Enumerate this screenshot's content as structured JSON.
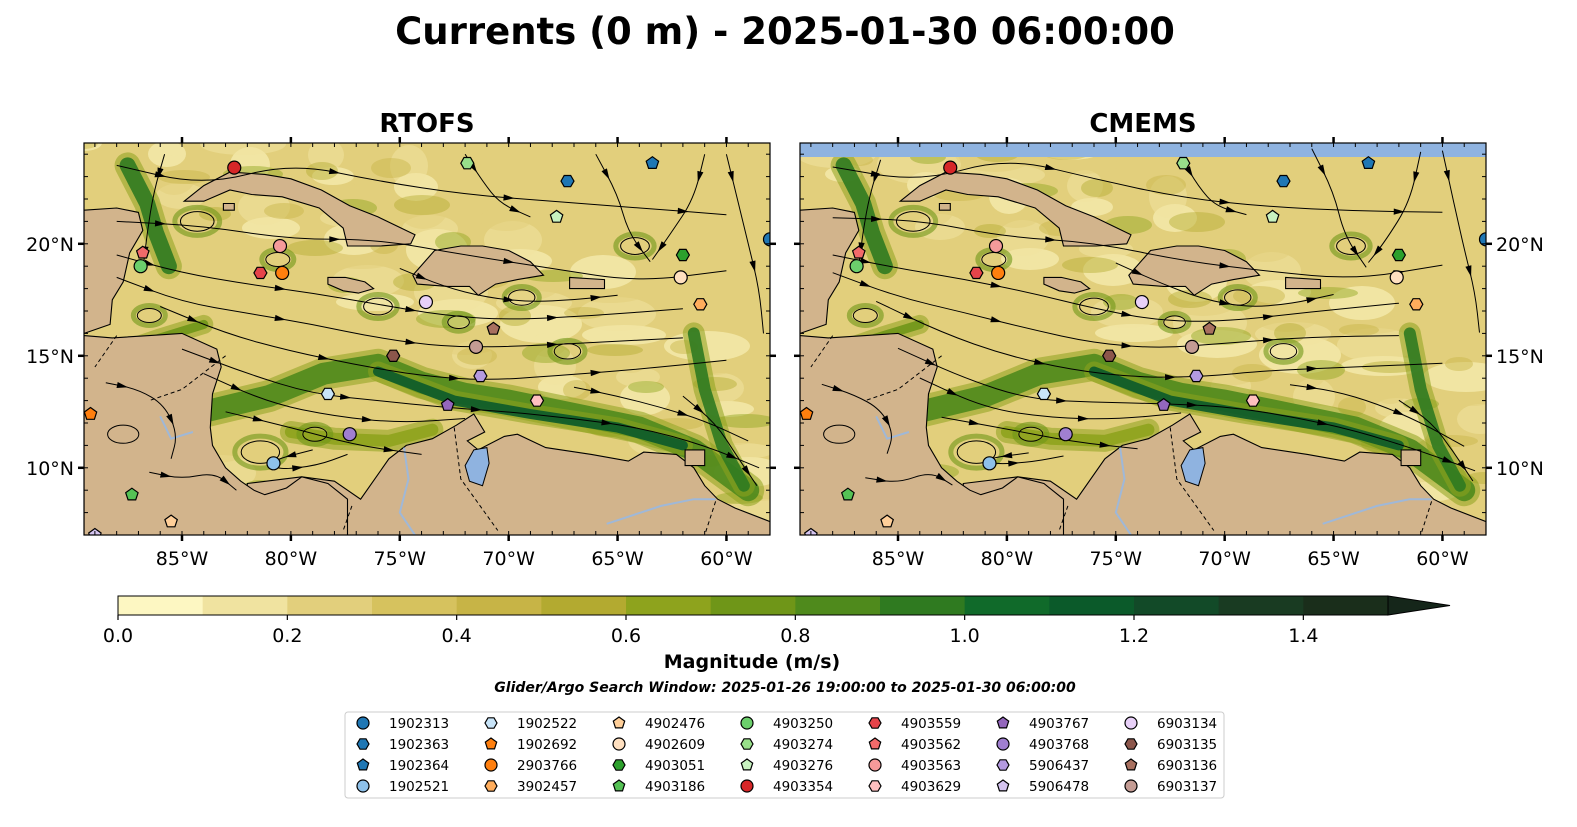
{
  "figure": {
    "title": "Currents (0 m) - 2025-01-30 06:00:00",
    "search_window": "Glider/Argo Search Window: 2025-01-26 19:00:00 to 2025-01-30 06:00:00"
  },
  "colors": {
    "land": "#d2b48c",
    "lake": "#8fb3e0",
    "no_data": "#8fb3e0",
    "river": "#9fb8d8"
  },
  "chart_data": {
    "type": "map",
    "panels": [
      {
        "title": "RTOFS",
        "no_data_band": false
      },
      {
        "title": "CMEMS",
        "no_data_band": true
      }
    ],
    "lon_range": [
      -89.5,
      -58.0
    ],
    "lat_range": [
      7.0,
      24.5
    ],
    "x_ticks": [
      {
        "value": -85,
        "label": "85°W"
      },
      {
        "value": -80,
        "label": "80°W"
      },
      {
        "value": -75,
        "label": "75°W"
      },
      {
        "value": -70,
        "label": "70°W"
      },
      {
        "value": -65,
        "label": "65°W"
      },
      {
        "value": -60,
        "label": "60°W"
      }
    ],
    "y_ticks": [
      {
        "value": 20,
        "label": "20°N"
      },
      {
        "value": 15,
        "label": "15°N"
      },
      {
        "value": 10,
        "label": "10°N"
      }
    ],
    "colorbar": {
      "label": "Magnitude (m/s)",
      "min": 0.0,
      "max": 1.5,
      "extend": "max",
      "ticks": [
        {
          "value": 0.0,
          "label": "0.0"
        },
        {
          "value": 0.2,
          "label": "0.2"
        },
        {
          "value": 0.4,
          "label": "0.4"
        },
        {
          "value": 0.6,
          "label": "0.6"
        },
        {
          "value": 0.8,
          "label": "0.8"
        },
        {
          "value": 1.0,
          "label": "1.0"
        },
        {
          "value": 1.2,
          "label": "1.2"
        },
        {
          "value": 1.4,
          "label": "1.4"
        }
      ],
      "colors": [
        "#fdf7c2",
        "#f0e3a0",
        "#e2cf7c",
        "#d6c25e",
        "#c7b446",
        "#b3aa30",
        "#8ea31d",
        "#6f9618",
        "#4f8a1c",
        "#2f7a20",
        "#106a2a",
        "#0b5a2a",
        "#124a28",
        "#193b22",
        "#1a2e1b"
      ],
      "extend_color": "#15261a"
    },
    "floats": [
      {
        "id": "1902313",
        "marker": "circle",
        "color": "#1f77b4",
        "lon": -58.0,
        "lat": 20.2
      },
      {
        "id": "1902363",
        "marker": "hexagon",
        "color": "#1f77b4",
        "lon": -67.3,
        "lat": 22.8
      },
      {
        "id": "1902364",
        "marker": "pentagon",
        "color": "#1f77b4",
        "lon": -63.4,
        "lat": 23.6
      },
      {
        "id": "1902521",
        "marker": "circle",
        "color": "#8ec1ea",
        "lon": -80.8,
        "lat": 10.2
      },
      {
        "id": "1902522",
        "marker": "hexagon",
        "color": "#c8e4f8",
        "lon": -78.3,
        "lat": 13.3
      },
      {
        "id": "1902692",
        "marker": "pentagon",
        "color": "#ff7f0e",
        "lon": -89.2,
        "lat": 12.4
      },
      {
        "id": "2903766",
        "marker": "circle",
        "color": "#ff7f0e",
        "lon": -80.4,
        "lat": 18.7
      },
      {
        "id": "3902457",
        "marker": "hexagon",
        "color": "#ffad5c",
        "lon": -61.2,
        "lat": 17.3
      },
      {
        "id": "4902476",
        "marker": "pentagon",
        "color": "#ffcf99",
        "lon": -85.5,
        "lat": 7.6
      },
      {
        "id": "4902609",
        "marker": "circle",
        "color": "#ffe0c0",
        "lon": -62.1,
        "lat": 18.5
      },
      {
        "id": "4903051",
        "marker": "hexagon",
        "color": "#2ca02c",
        "lon": -62.0,
        "lat": 19.5
      },
      {
        "id": "4903186",
        "marker": "pentagon",
        "color": "#55c255",
        "lon": -87.3,
        "lat": 8.8
      },
      {
        "id": "4903250",
        "marker": "circle",
        "color": "#6ccf6c",
        "lon": -86.9,
        "lat": 19.0
      },
      {
        "id": "4903274",
        "marker": "hexagon",
        "color": "#98df8a",
        "lon": -71.9,
        "lat": 23.6
      },
      {
        "id": "4903276",
        "marker": "pentagon",
        "color": "#c8f2c0",
        "lon": -67.8,
        "lat": 21.2
      },
      {
        "id": "4903354",
        "marker": "circle",
        "color": "#d62728",
        "lon": -82.6,
        "lat": 23.4
      },
      {
        "id": "4903559",
        "marker": "hexagon",
        "color": "#e6444a",
        "lon": -81.4,
        "lat": 18.7
      },
      {
        "id": "4903562",
        "marker": "pentagon",
        "color": "#f26a6a",
        "lon": -86.8,
        "lat": 19.6
      },
      {
        "id": "4903563",
        "marker": "circle",
        "color": "#f59a9a",
        "lon": -80.5,
        "lat": 19.9
      },
      {
        "id": "4903629",
        "marker": "hexagon",
        "color": "#ffc0c0",
        "lon": -68.7,
        "lat": 13.0
      },
      {
        "id": "4903767",
        "marker": "pentagon",
        "color": "#9467bd",
        "lon": -72.8,
        "lat": 12.8
      },
      {
        "id": "4903768",
        "marker": "circle",
        "color": "#a07fd0",
        "lon": -77.3,
        "lat": 11.5
      },
      {
        "id": "5906437",
        "marker": "hexagon",
        "color": "#b49ae0",
        "lon": -71.3,
        "lat": 14.1
      },
      {
        "id": "5906478",
        "marker": "pentagon",
        "color": "#d5c4f0",
        "lon": -89.0,
        "lat": 7.0
      },
      {
        "id": "6903134",
        "marker": "circle",
        "color": "#e8d0f8",
        "lon": -73.8,
        "lat": 17.4
      },
      {
        "id": "6903135",
        "marker": "hexagon",
        "color": "#8c564b",
        "lon": -75.3,
        "lat": 15.0
      },
      {
        "id": "6903136",
        "marker": "pentagon",
        "color": "#a8705f",
        "lon": -70.7,
        "lat": 16.2
      },
      {
        "id": "6903137",
        "marker": "circle",
        "color": "#c49c94",
        "lon": -71.5,
        "lat": 15.4
      }
    ]
  }
}
